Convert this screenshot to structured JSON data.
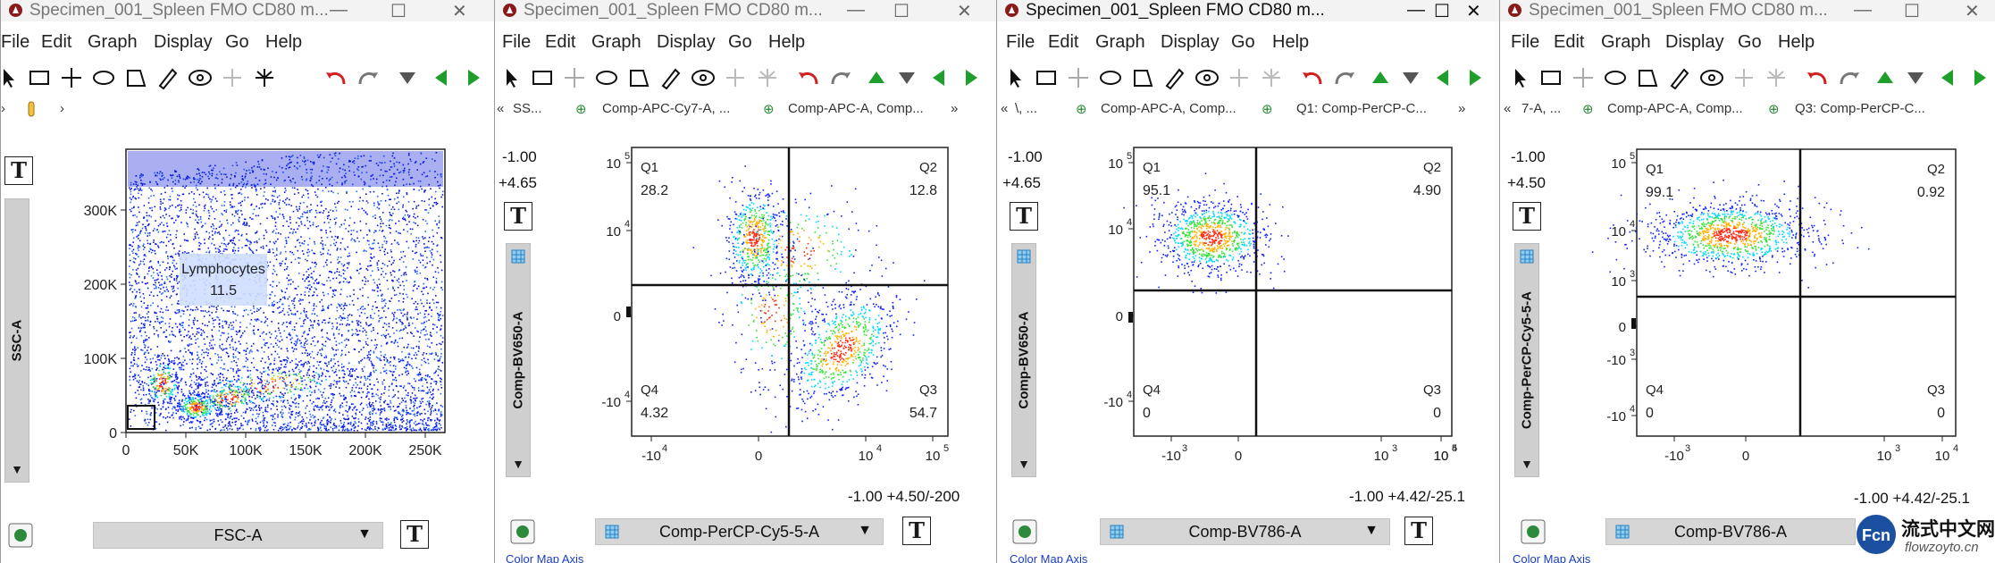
{
  "windows": [
    {
      "id": "w1",
      "title": "Specimen_001_Spleen FMO CD80 m...",
      "active": false,
      "menu": [
        "File",
        "Edit",
        "Graph",
        "Display",
        "Go",
        "Help"
      ],
      "x_param": "FSC-A",
      "y_param": "SSC-A",
      "gate": {
        "name": "Lymphocytes",
        "value": "11.5"
      },
      "x_ticks": [
        "0",
        "50K",
        "100K",
        "150K",
        "200K",
        "250K"
      ],
      "y_ticks": [
        "0",
        "100K",
        "200K",
        "300K"
      ]
    },
    {
      "id": "w2",
      "title": "Specimen_001_Spleen FMO CD80 m...",
      "active": false,
      "menu": [
        "File",
        "Edit",
        "Graph",
        "Display",
        "Go",
        "Help"
      ],
      "crumbs": [
        "SS...",
        "Comp-APC-Cy7-A, ...",
        "Comp-APC-A, Comp..."
      ],
      "y_param": "Comp-BV650-A",
      "x_param": "Comp-PerCP-Cy5-5-A",
      "y_scale_min": "-1.00",
      "y_scale_max": "+4.65",
      "x_scale": "-1.00 +4.50/-200",
      "quadrants": [
        {
          "name": "Q1",
          "value": "28.2"
        },
        {
          "name": "Q2",
          "value": "12.8"
        },
        {
          "name": "Q4",
          "value": "4.32"
        },
        {
          "name": "Q3",
          "value": "54.7"
        }
      ],
      "y_ticks": [
        "10",
        "10",
        "0",
        "-10"
      ],
      "x_ticks": [
        "-10",
        "0",
        "10",
        "10"
      ]
    },
    {
      "id": "w3",
      "title": "Specimen_001_Spleen FMO CD80 m...",
      "active": true,
      "menu": [
        "File",
        "Edit",
        "Graph",
        "Display",
        "Go",
        "Help"
      ],
      "crumbs": [
        "\\, ...",
        "Comp-APC-A, Comp...",
        "Q1: Comp-PerCP-C..."
      ],
      "y_param": "Comp-BV650-A",
      "x_param": "Comp-BV786-A",
      "y_scale_min": "-1.00",
      "y_scale_max": "+4.65",
      "x_scale": "-1.00 +4.42/-25.1",
      "quadrants": [
        {
          "name": "Q1",
          "value": "95.1"
        },
        {
          "name": "Q2",
          "value": "4.90"
        },
        {
          "name": "Q4",
          "value": "0"
        },
        {
          "name": "Q3",
          "value": "0"
        }
      ],
      "y_ticks": [
        "10",
        "10",
        "0",
        "-10"
      ],
      "x_ticks": [
        "-10",
        "0",
        "10",
        "10",
        "10"
      ]
    },
    {
      "id": "w4",
      "title": "Specimen_001_Spleen FMO CD80 m...",
      "active": false,
      "menu": [
        "File",
        "Edit",
        "Graph",
        "Display",
        "Go",
        "Help"
      ],
      "crumbs": [
        "7-A, ...",
        "Comp-APC-A, Comp...",
        "Q3: Comp-PerCP-C..."
      ],
      "y_param": "Comp-PerCP-Cy5-5-A",
      "x_param": "Comp-BV786-A",
      "y_scale_min": "-1.00",
      "y_scale_max": "+4.50",
      "x_scale": "-1.00 +4.42/-25.1",
      "quadrants": [
        {
          "name": "Q1",
          "value": "99.1"
        },
        {
          "name": "Q2",
          "value": "0.92"
        },
        {
          "name": "Q4",
          "value": "0"
        },
        {
          "name": "Q3",
          "value": "0"
        }
      ],
      "y_ticks": [
        "10",
        "10",
        "10",
        "0",
        "-10",
        "-10"
      ],
      "x_ticks": [
        "-10",
        "0",
        "10",
        "10"
      ]
    }
  ],
  "color_map_label": "Color Map Axis",
  "watermark": {
    "cn": "流式中文网",
    "url": "flowzoyto.cn"
  },
  "colors": {
    "density_low": "#0000ff",
    "density_mid": "#00e0ff",
    "density_high": "#ff0000",
    "accent_green": "#1e9e2a",
    "undo_red": "#d02020",
    "bg": "#ffffff"
  }
}
